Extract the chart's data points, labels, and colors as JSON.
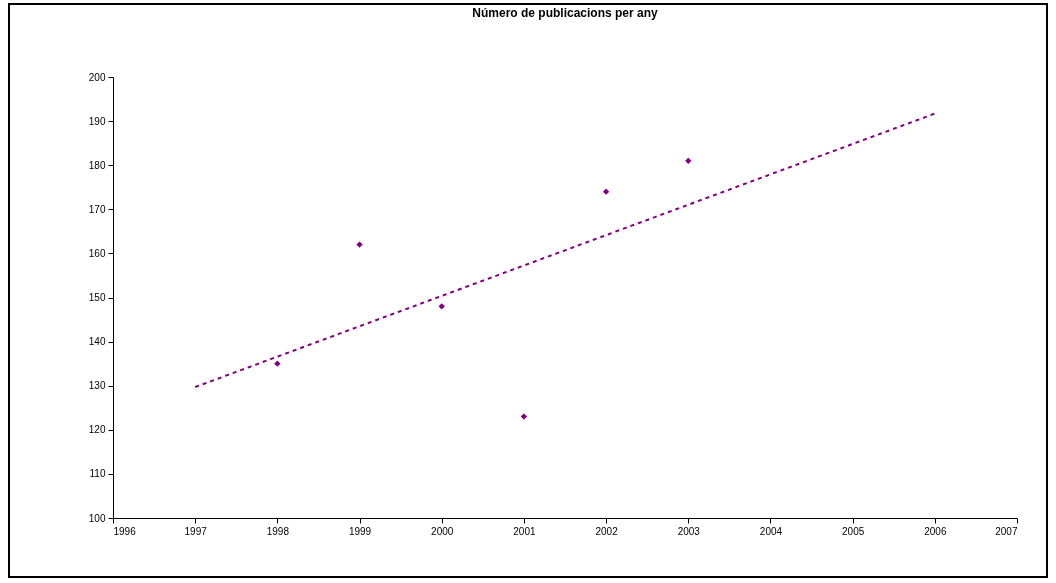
{
  "chart_data": {
    "type": "scatter",
    "title": "Número de publicacions per any",
    "xlim": [
      1996,
      2007
    ],
    "xticks": [
      1996,
      1997,
      1998,
      1999,
      2000,
      2001,
      2002,
      2003,
      2004,
      2005,
      2006,
      2007
    ],
    "ylim": [
      100,
      200
    ],
    "yticks": [
      100,
      110,
      120,
      130,
      140,
      150,
      160,
      170,
      180,
      190,
      200
    ],
    "series": [
      {
        "marker": "diamond",
        "color": "#800080",
        "x": [
          1998,
          1999,
          2000,
          2001,
          2002,
          2003
        ],
        "values": [
          135,
          162,
          148,
          123,
          174,
          181
        ]
      },
      {
        "type": "line",
        "line_style": "dashed",
        "color": "#800080",
        "x": [
          1997,
          2006
        ],
        "values": [
          129.7,
          191.7
        ]
      }
    ]
  }
}
